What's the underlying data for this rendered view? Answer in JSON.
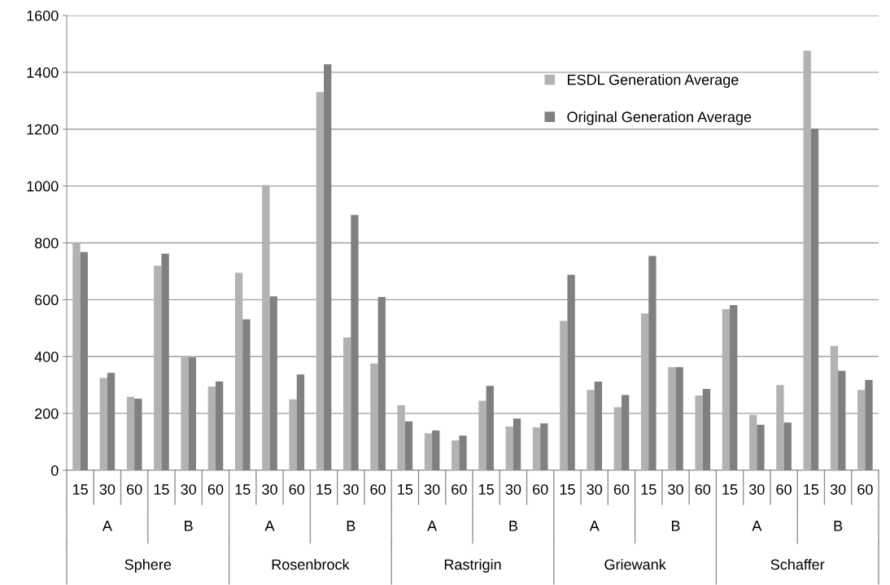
{
  "chart_data": {
    "type": "bar",
    "categories": [
      "15",
      "30",
      "60",
      "15",
      "30",
      "60",
      "15",
      "30",
      "60",
      "15",
      "30",
      "60",
      "15",
      "30",
      "60",
      "15",
      "30",
      "60",
      "15",
      "30",
      "60",
      "15",
      "30",
      "60",
      "15",
      "30",
      "60",
      "15",
      "30",
      "60"
    ],
    "series": [
      {
        "name": "ESDL Generation Average",
        "color": "#b2b2b2",
        "values": [
          800,
          325,
          258,
          720,
          397,
          295,
          695,
          1003,
          250,
          1330,
          467,
          376,
          229,
          130,
          105,
          245,
          154,
          151,
          525,
          283,
          222,
          552,
          363,
          263,
          567,
          195,
          300,
          1476,
          437,
          283
        ]
      },
      {
        "name": "Original Generation Average",
        "color": "#808080",
        "values": [
          768,
          343,
          252,
          762,
          397,
          313,
          531,
          612,
          337,
          1428,
          898,
          610,
          172,
          140,
          122,
          297,
          182,
          165,
          688,
          312,
          265,
          754,
          363,
          286,
          581,
          160,
          168,
          1202,
          350,
          318
        ]
      }
    ],
    "annotations": [
      "A",
      "B",
      "A",
      "B",
      "A",
      "B",
      "A",
      "B",
      "A",
      "B",
      "Sphere",
      "Rosenbrock",
      "Rastrigin",
      "Griewank",
      "Schaffer"
    ],
    "ylim": [
      0,
      1600
    ],
    "yticks": [
      0,
      200,
      400,
      600,
      800,
      1000,
      1200,
      1400,
      1600
    ],
    "grid": "y",
    "legend": "top right"
  }
}
